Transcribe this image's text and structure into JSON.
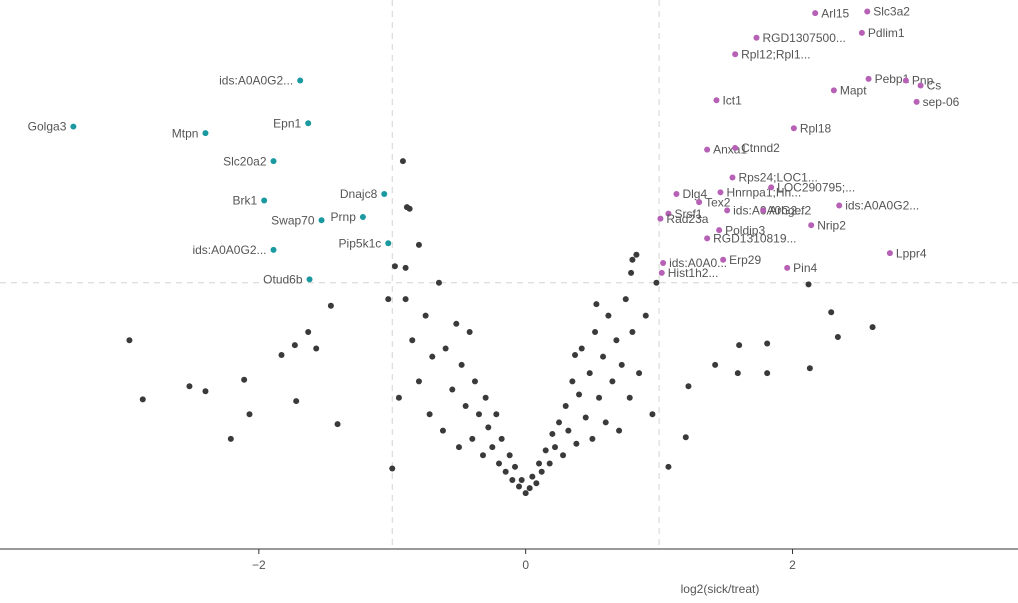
{
  "chart_data": {
    "type": "scatter",
    "x_label": "log2(sick/treat)",
    "xlim": [
      -3.94,
      3.69
    ],
    "ylim": [
      -0.32,
      3.02
    ],
    "xticks": [
      {
        "value": -2,
        "label": "−2"
      },
      0,
      2
    ],
    "vlines": [
      -1,
      1
    ],
    "hline": 1.3,
    "series": [
      {
        "color": "#3a3a3a",
        "x": [
          -2.97,
          -2.87,
          -2.52,
          -2.4,
          -2.21,
          -2.07,
          -2.11,
          -1.83,
          -1.73,
          -1.63,
          -1.57,
          -1.72,
          -1.46,
          -1.41,
          -0.92,
          -0.89,
          -0.87,
          -0.8,
          -0.9,
          -1.03,
          -1.0,
          2.6,
          2.34,
          2.12,
          2.13,
          2.29,
          1.81,
          1.81,
          1.6,
          1.59,
          1.42,
          1.22,
          1.2,
          1.07,
          0.83,
          0.79,
          0.8,
          0.53,
          0.37,
          -0.9,
          -0.85,
          -0.8,
          -0.75,
          -0.72,
          -0.7,
          -0.65,
          -0.62,
          -0.6,
          -0.55,
          -0.52,
          -0.5,
          -0.48,
          -0.45,
          -0.42,
          -0.4,
          -0.38,
          -0.35,
          -0.32,
          -0.3,
          -0.28,
          -0.25,
          -0.22,
          -0.2,
          -0.18,
          -0.15,
          -0.12,
          -0.1,
          -0.08,
          -0.05,
          -0.03,
          0,
          0.03,
          0.05,
          0.08,
          0.1,
          0.12,
          0.15,
          0.18,
          0.2,
          0.22,
          0.25,
          0.28,
          0.3,
          0.32,
          0.35,
          0.38,
          0.4,
          0.42,
          0.45,
          0.48,
          0.5,
          0.52,
          0.55,
          0.58,
          0.6,
          0.62,
          0.65,
          0.68,
          0.7,
          0.72,
          0.75,
          0.78,
          0.8,
          0.85,
          0.9,
          0.95,
          -0.95,
          -0.98,
          0.98
        ],
        "values": [
          0.95,
          0.59,
          0.67,
          0.64,
          0.35,
          0.5,
          0.71,
          0.86,
          0.92,
          1.0,
          0.9,
          0.58,
          1.16,
          0.44,
          2.04,
          1.76,
          1.75,
          1.53,
          1.39,
          1.2,
          0.17,
          1.03,
          0.97,
          1.29,
          0.78,
          1.12,
          0.75,
          0.93,
          0.92,
          0.75,
          0.8,
          0.67,
          0.36,
          0.18,
          1.47,
          1.36,
          1.44,
          1.17,
          0.86,
          1.2,
          0.95,
          0.7,
          1.1,
          0.5,
          0.85,
          1.3,
          0.4,
          0.9,
          0.65,
          1.05,
          0.3,
          0.8,
          0.55,
          1.0,
          0.35,
          0.7,
          0.5,
          0.25,
          0.6,
          0.42,
          0.3,
          0.5,
          0.2,
          0.35,
          0.15,
          0.25,
          0.1,
          0.18,
          0.06,
          0.1,
          0.02,
          0.05,
          0.12,
          0.08,
          0.2,
          0.15,
          0.28,
          0.2,
          0.38,
          0.3,
          0.45,
          0.25,
          0.55,
          0.4,
          0.7,
          0.32,
          0.62,
          0.9,
          0.48,
          0.75,
          0.35,
          1.0,
          0.6,
          0.85,
          0.45,
          1.1,
          0.7,
          0.95,
          0.4,
          0.8,
          1.2,
          0.6,
          1.0,
          0.75,
          1.1,
          0.5,
          0.6,
          1.4,
          1.3
        ]
      },
      {
        "color": "#1a9aa0",
        "label_side": "left",
        "x": [
          -1.69,
          -3.39,
          -2.4,
          -1.63,
          -1.89,
          -1.96,
          -1.06,
          -1.53,
          -1.22,
          -1.03,
          -1.89,
          -1.62
        ],
        "values": [
          2.53,
          2.25,
          2.21,
          2.27,
          2.04,
          1.8,
          1.84,
          1.68,
          1.7,
          1.54,
          1.5,
          1.32
        ],
        "labels": [
          "ids:A0A0G2...",
          "Golga3",
          "Mtpn",
          "Epn1",
          "Slc20a2",
          "Brk1",
          "Dnajc8",
          "Swap70",
          "Prnp",
          "Pip5k1c",
          "ids:A0A0G2...",
          "Otud6b"
        ]
      },
      {
        "color": "#b660b6",
        "label_side": "right",
        "x": [
          2.17,
          2.56,
          1.73,
          2.52,
          1.57,
          2.57,
          2.85,
          2.96,
          2.31,
          1.43,
          2.93,
          2.01,
          1.36,
          1.57,
          1.55,
          1.46,
          1.84,
          1.13,
          1.3,
          1.51,
          1.78,
          2.35,
          1.07,
          1.01,
          2.14,
          1.45,
          1.36,
          2.73,
          1.48,
          1.96,
          1.03,
          1.02
        ],
        "values": [
          2.94,
          2.95,
          2.79,
          2.82,
          2.69,
          2.54,
          2.53,
          2.5,
          2.47,
          2.41,
          2.4,
          2.24,
          2.11,
          2.12,
          1.94,
          1.85,
          1.88,
          1.84,
          1.79,
          1.74,
          1.74,
          1.77,
          1.72,
          1.69,
          1.65,
          1.62,
          1.57,
          1.48,
          1.44,
          1.39,
          1.42,
          1.36
        ],
        "labels": [
          "Arl15",
          "Slc3a2",
          "RGD1307500...",
          "Pdlim1",
          "Rpl12;Rpl1...",
          "Pebp1",
          "Pnp",
          "Cs",
          "Mapt",
          "Ict1",
          "sep-06",
          "Rpl18",
          "Anxa1",
          "Ctnnd2",
          "Rps24;LOC1...",
          "Hnrnpa1;Hn...",
          "LOC290795;...",
          "Dlg4",
          "Tex2",
          "ids:A0A0G2...",
          "Arhgef2",
          "ids:A0A0G2...",
          "Srsf1",
          "Rad23a",
          "Nrip2",
          "Poldip3",
          "RGD1310819...",
          "Lppr4",
          "Erp29",
          "Pin4",
          "ids:A0A0...",
          "Hist1h2..."
        ]
      }
    ]
  }
}
